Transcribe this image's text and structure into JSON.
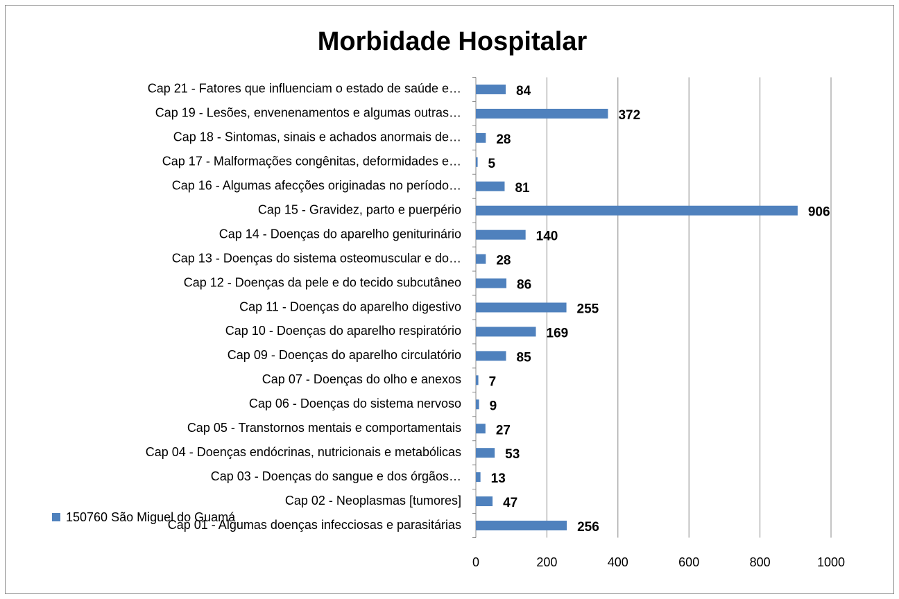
{
  "chart_data": {
    "type": "bar",
    "orientation": "horizontal",
    "title": "Morbidade Hospitalar",
    "categories": [
      "Cap 01 - Algumas doenças infecciosas e parasitárias",
      "Cap 02 - Neoplasmas [tumores]",
      "Cap 03 - Doenças do sangue e dos órgãos…",
      "Cap 04 - Doenças endócrinas, nutricionais e metabólicas",
      "Cap 05 - Transtornos mentais e comportamentais",
      "Cap 06 - Doenças do sistema nervoso",
      "Cap 07 - Doenças do olho e anexos",
      "Cap 09 - Doenças do aparelho circulatório",
      "Cap 10 - Doenças do aparelho respiratório",
      "Cap 11 - Doenças do aparelho digestivo",
      "Cap 12 - Doenças da pele e do tecido subcutâneo",
      "Cap 13 - Doenças do sistema osteomuscular e do…",
      "Cap 14 - Doenças do aparelho geniturinário",
      "Cap 15 - Gravidez, parto e puerpério",
      "Cap 16 - Algumas afecções originadas no período…",
      "Cap 17 - Malformações congênitas, deformidades e…",
      "Cap 18 - Sintomas, sinais e achados anormais de…",
      "Cap 19 - Lesões, envenenamentos e algumas outras…",
      "Cap 21 - Fatores que influenciam o estado de saúde e…"
    ],
    "series": [
      {
        "name": "150760 São Miguel do Guamá",
        "color": "#4f81bd",
        "values": [
          256,
          47,
          13,
          53,
          27,
          9,
          7,
          85,
          169,
          255,
          86,
          28,
          140,
          906,
          81,
          5,
          28,
          372,
          84
        ]
      }
    ],
    "xlim": [
      0,
      1000
    ],
    "xticks": [
      0,
      200,
      400,
      600,
      800,
      1000
    ],
    "grid": true,
    "legend": "bottom-left"
  }
}
